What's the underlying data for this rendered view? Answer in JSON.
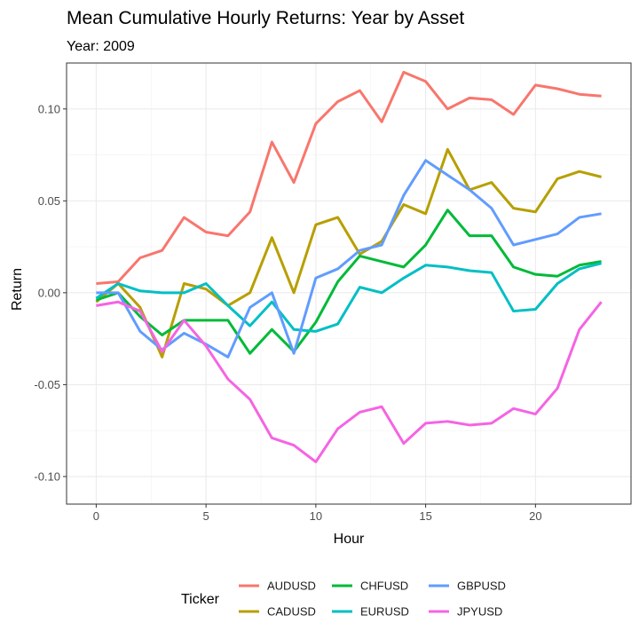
{
  "chart_data": {
    "type": "line",
    "title": "Mean Cumulative Hourly Returns: Year by Asset",
    "subtitle": "Year: 2009",
    "xlabel": "Hour",
    "ylabel": "Return",
    "xlim": [
      -1.35,
      24.35
    ],
    "ylim": [
      -0.115,
      0.125
    ],
    "xticks": [
      0,
      5,
      10,
      15,
      20
    ],
    "yticks": [
      -0.1,
      -0.05,
      0.0,
      0.05,
      0.1
    ],
    "ytick_labels": [
      "-0.10",
      "-0.05",
      "0.00",
      "0.05",
      "0.10"
    ],
    "grid": true,
    "legend": {
      "title": "Ticker",
      "position": "bottom"
    },
    "x": [
      0,
      1,
      2,
      3,
      4,
      5,
      6,
      7,
      8,
      9,
      10,
      11,
      12,
      13,
      14,
      15,
      16,
      17,
      18,
      19,
      20,
      21,
      22,
      23
    ],
    "series": [
      {
        "name": "AUDUSD",
        "color": "#F8766D",
        "values": [
          0.005,
          0.006,
          0.019,
          0.023,
          0.041,
          0.033,
          0.031,
          0.044,
          0.082,
          0.06,
          0.092,
          0.104,
          0.11,
          0.093,
          0.12,
          0.115,
          0.1,
          0.106,
          0.105,
          0.097,
          0.113,
          0.111,
          0.108,
          0.107
        ]
      },
      {
        "name": "CADUSD",
        "color": "#B79F00",
        "values": [
          -0.005,
          0.005,
          -0.008,
          -0.035,
          0.005,
          0.002,
          -0.007,
          0.0,
          0.03,
          0.0,
          0.037,
          0.041,
          0.021,
          0.028,
          0.048,
          0.043,
          0.078,
          0.056,
          0.06,
          0.046,
          0.044,
          0.062,
          0.066,
          0.063
        ]
      },
      {
        "name": "CHFUSD",
        "color": "#00BA38",
        "values": [
          -0.004,
          0.0,
          -0.013,
          -0.023,
          -0.015,
          -0.015,
          -0.015,
          -0.033,
          -0.02,
          -0.032,
          -0.016,
          0.006,
          0.02,
          0.017,
          0.014,
          0.026,
          0.045,
          0.031,
          0.031,
          0.014,
          0.01,
          0.009,
          0.015,
          0.017
        ]
      },
      {
        "name": "EURUSD",
        "color": "#00BFC4",
        "values": [
          -0.003,
          0.005,
          0.001,
          0.0,
          0.0,
          0.005,
          -0.007,
          -0.018,
          -0.005,
          -0.02,
          -0.021,
          -0.017,
          0.003,
          0.0,
          0.008,
          0.015,
          0.014,
          0.012,
          0.011,
          -0.01,
          -0.009,
          0.005,
          0.013,
          0.016
        ]
      },
      {
        "name": "GBPUSD",
        "color": "#619CFF",
        "values": [
          0.0,
          0.0,
          -0.021,
          -0.031,
          -0.022,
          -0.028,
          -0.035,
          -0.008,
          0.0,
          -0.033,
          0.008,
          0.013,
          0.023,
          0.026,
          0.053,
          0.072,
          0.064,
          0.056,
          0.046,
          0.026,
          0.029,
          0.032,
          0.041,
          0.043
        ]
      },
      {
        "name": "JPYUSD",
        "color": "#F564E3",
        "values": [
          -0.007,
          -0.005,
          -0.01,
          -0.032,
          -0.015,
          -0.029,
          -0.047,
          -0.058,
          -0.079,
          -0.083,
          -0.092,
          -0.074,
          -0.065,
          -0.062,
          -0.082,
          -0.071,
          -0.07,
          -0.072,
          -0.071,
          -0.063,
          -0.066,
          -0.052,
          -0.02,
          -0.005
        ]
      }
    ]
  }
}
